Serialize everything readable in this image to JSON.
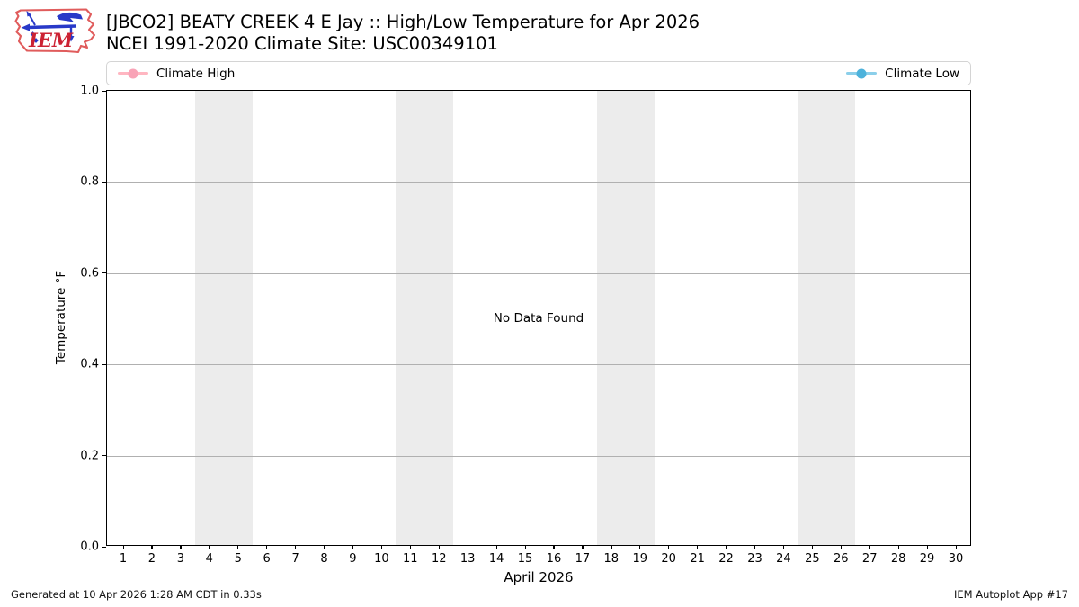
{
  "header": {
    "title": "[JBCO2] BEATY CREEK 4 E Jay :: High/Low Temperature for Apr 2026",
    "subtitle": "NCEI 1991-2020 Climate Site: USC00349101",
    "logo_text": "IEM"
  },
  "legend": {
    "items": [
      {
        "label": "Climate High",
        "line_color": "#ffb6c1",
        "marker_color": "#f9a3b7",
        "side": "left"
      },
      {
        "label": "Climate Low",
        "line_color": "#8bcfea",
        "marker_color": "#4db2db",
        "side": "right"
      }
    ]
  },
  "chart_data": {
    "type": "line",
    "title": "[JBCO2] BEATY CREEK 4 E Jay :: High/Low Temperature for Apr 2026",
    "subtitle": "NCEI 1991-2020 Climate Site: USC00349101",
    "xlabel": "April 2026",
    "ylabel": "Temperature °F",
    "ylim": [
      0.0,
      1.0
    ],
    "yticks": [
      0.0,
      0.2,
      0.4,
      0.6,
      0.8,
      1.0
    ],
    "xticks": [
      1,
      2,
      3,
      4,
      5,
      6,
      7,
      8,
      9,
      10,
      11,
      12,
      13,
      14,
      15,
      16,
      17,
      18,
      19,
      20,
      21,
      22,
      23,
      24,
      25,
      26,
      27,
      28,
      29,
      30
    ],
    "xlim": [
      0.44,
      30.56
    ],
    "grid": true,
    "legend_position": "top",
    "series": [
      {
        "name": "Climate High",
        "color": "#ffb6c1",
        "x": [],
        "values": []
      },
      {
        "name": "Climate Low",
        "color": "#8bcfea",
        "x": [],
        "values": []
      }
    ],
    "weekend_bands": [
      [
        3.5,
        5.5
      ],
      [
        10.5,
        12.5
      ],
      [
        17.5,
        19.5
      ],
      [
        24.5,
        26.5
      ]
    ],
    "no_data_text": "No Data Found"
  },
  "footer": {
    "left": "Generated at 10 Apr 2026 1:28 AM CDT in 0.33s",
    "right": "IEM Autoplot App #17"
  },
  "colors": {
    "band": "#ececec",
    "grid": "#b0b0b0",
    "spine": "#000000",
    "legend_border": "#d4d4d4",
    "logo_outline_red": "#e05c5c",
    "logo_text_red": "#cc2233",
    "logo_vane_blue": "#2839c8"
  }
}
